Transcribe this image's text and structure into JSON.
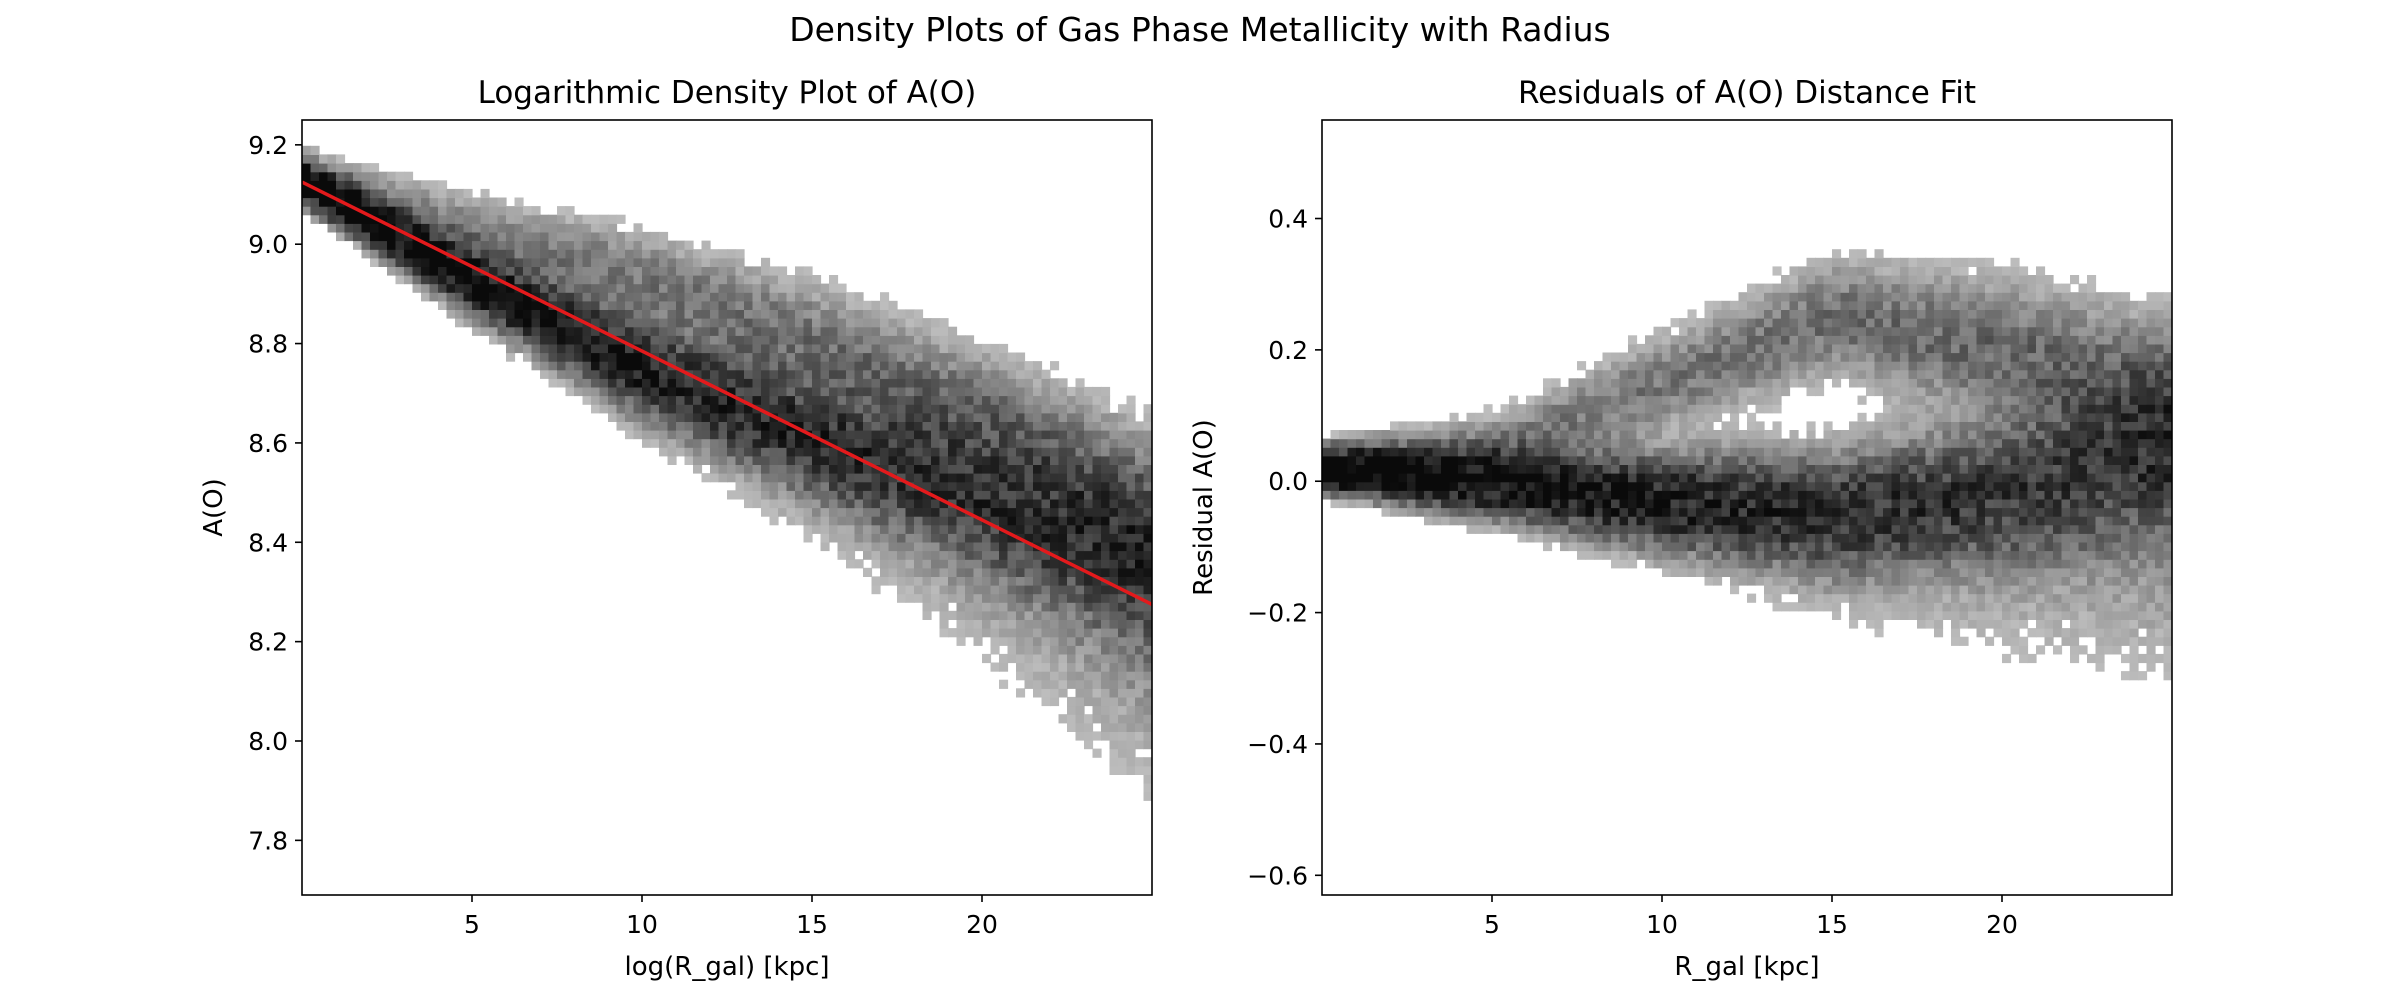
{
  "suptitle": "Density Plots of Gas Phase Metallicity with Radius",
  "colors": {
    "density_colormap": "Greys",
    "fit_line": "#e41a1c",
    "axes": "#000000",
    "background": "#ffffff"
  },
  "chart_data": [
    {
      "type": "heatmap",
      "title": "Logarithmic Density Plot of A(O)",
      "xlabel": "log(R_gal) [kpc]",
      "ylabel": "A(O)",
      "xlim": [
        0,
        25
      ],
      "ylim": [
        7.69,
        9.25
      ],
      "xticks": [
        5,
        10,
        15,
        20
      ],
      "xtick_labels": [
        "5",
        "10",
        "15",
        "20"
      ],
      "yticks": [
        7.8,
        8.0,
        8.2,
        8.4,
        8.6,
        8.8,
        9.0,
        9.2
      ],
      "ytick_labels": [
        "7.8",
        "8.0",
        "8.2",
        "8.4",
        "8.6",
        "8.8",
        "9.0",
        "9.2"
      ],
      "colormap": "Greys",
      "color_scale": "log",
      "grid": false,
      "density_ridges": [
        {
          "x": [
            0,
            5,
            10,
            15,
            20,
            25
          ],
          "y": [
            9.13,
            8.93,
            8.75,
            8.61,
            8.48,
            8.33
          ]
        },
        {
          "x": [
            0,
            5,
            10,
            15,
            20,
            25
          ],
          "y": [
            9.14,
            9.03,
            8.93,
            8.8,
            8.64,
            8.45
          ]
        }
      ],
      "overlay_lines": [
        {
          "type": "line",
          "color": "#e41a1c",
          "x": [
            0,
            25
          ],
          "y": [
            9.125,
            8.275
          ]
        }
      ]
    },
    {
      "type": "heatmap",
      "title": "Residuals of A(O) Distance Fit",
      "xlabel": "R_gal [kpc]",
      "ylabel": "Residual A(O)",
      "xlim": [
        0,
        25
      ],
      "ylim": [
        -0.63,
        0.55
      ],
      "xticks": [
        5,
        10,
        15,
        20
      ],
      "xtick_labels": [
        "5",
        "10",
        "15",
        "20"
      ],
      "yticks": [
        -0.6,
        -0.4,
        -0.2,
        0.0,
        0.2,
        0.4
      ],
      "ytick_labels": [
        "−0.6",
        "−0.4",
        "−0.2",
        "0.0",
        "0.2",
        "0.4"
      ],
      "colormap": "Greys",
      "color_scale": "log",
      "grid": false,
      "density_ridges": [
        {
          "x": [
            0,
            5,
            10,
            15,
            20,
            25
          ],
          "y": [
            0.02,
            0.0,
            -0.03,
            -0.05,
            -0.02,
            0.04
          ]
        },
        {
          "x": [
            0,
            5,
            10,
            15,
            20,
            25
          ],
          "y": [
            0.02,
            0.05,
            0.15,
            0.25,
            0.2,
            0.12
          ]
        }
      ]
    }
  ]
}
